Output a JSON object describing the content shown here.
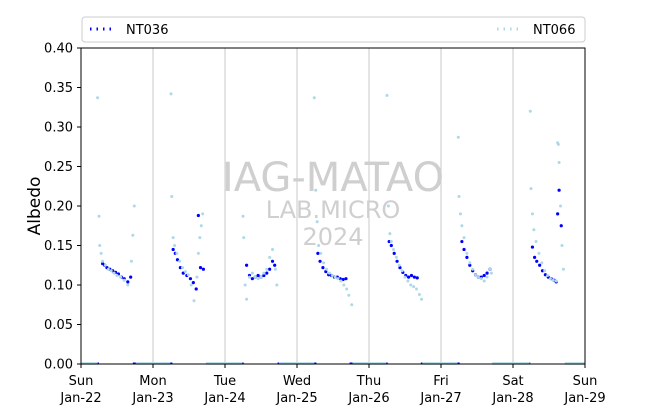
{
  "chart_data": {
    "type": "scatter",
    "title": "",
    "xlabel": "",
    "ylabel": "Albedo",
    "ylim": [
      0,
      0.4
    ],
    "xlim": [
      0,
      7
    ],
    "x_unit": "days from Sun Jan-22 00:00",
    "yticks": [
      "0.00",
      "0.05",
      "0.10",
      "0.15",
      "0.20",
      "0.25",
      "0.30",
      "0.35",
      "0.40"
    ],
    "xticks": [
      {
        "day": "Sun",
        "date": "Jan-22"
      },
      {
        "day": "Mon",
        "date": "Jan-23"
      },
      {
        "day": "Tue",
        "date": "Jan-24"
      },
      {
        "day": "Wed",
        "date": "Jan-25"
      },
      {
        "day": "Thu",
        "date": "Jan-26"
      },
      {
        "day": "Fri",
        "date": "Jan-27"
      },
      {
        "day": "Sat",
        "date": "Jan-28"
      },
      {
        "day": "Sun",
        "date": "Jan-29"
      }
    ],
    "vertical_gridlines": true,
    "legend_position": "top",
    "watermark": [
      "IAG-MATAO",
      "LAB.MICRO",
      "2024"
    ],
    "series": [
      {
        "name": "NT036",
        "color": "#0000ff",
        "style": "dotted",
        "days": [
          {
            "offset": 0,
            "x": [
              0.3,
              0.33,
              0.36,
              0.4,
              0.44,
              0.48,
              0.52,
              0.56,
              0.6,
              0.65,
              0.69
            ],
            "y": [
              0.127,
              0.125,
              0.122,
              0.12,
              0.118,
              0.116,
              0.114,
              0.11,
              0.108,
              0.104,
              0.11
            ],
            "night": [
              0.0,
              0.25,
              0.72,
              1.0
            ]
          },
          {
            "offset": 1,
            "x": [
              0.28,
              0.31,
              0.34,
              0.38,
              0.42,
              0.47,
              0.52,
              0.56,
              0.6,
              0.63,
              0.66,
              0.7
            ],
            "y": [
              0.145,
              0.14,
              0.132,
              0.122,
              0.115,
              0.112,
              0.108,
              0.103,
              0.095,
              0.188,
              0.122,
              0.12
            ],
            "night": [
              0.0,
              0.27,
              0.74,
              1.0
            ]
          },
          {
            "offset": 2,
            "x": [
              0.3,
              0.34,
              0.38,
              0.42,
              0.46,
              0.5,
              0.54,
              0.58,
              0.62,
              0.66,
              0.69
            ],
            "y": [
              0.125,
              0.112,
              0.108,
              0.11,
              0.112,
              0.11,
              0.112,
              0.115,
              0.12,
              0.13,
              0.125
            ],
            "night": [
              0.0,
              0.26,
              0.73,
              1.0
            ]
          },
          {
            "offset": 3,
            "x": [
              0.29,
              0.32,
              0.36,
              0.4,
              0.44,
              0.48,
              0.52,
              0.56,
              0.6,
              0.64,
              0.68
            ],
            "y": [
              0.14,
              0.13,
              0.122,
              0.117,
              0.113,
              0.112,
              0.11,
              0.11,
              0.108,
              0.107,
              0.108
            ],
            "night": [
              0.0,
              0.27,
              0.73,
              1.0
            ]
          },
          {
            "offset": 4,
            "x": [
              0.28,
              0.31,
              0.35,
              0.39,
              0.43,
              0.47,
              0.51,
              0.55,
              0.59,
              0.63,
              0.67
            ],
            "y": [
              0.155,
              0.15,
              0.14,
              0.13,
              0.122,
              0.116,
              0.112,
              0.11,
              0.112,
              0.11,
              0.109
            ],
            "night": [
              0.0,
              0.26,
              0.72,
              1.0
            ]
          },
          {
            "offset": 5,
            "x": [
              0.29,
              0.32,
              0.36,
              0.4,
              0.44,
              0.48,
              0.52,
              0.56,
              0.6,
              0.64,
              0.68
            ],
            "y": [
              0.155,
              0.145,
              0.135,
              0.125,
              0.118,
              0.113,
              0.11,
              0.11,
              0.112,
              0.115,
              0.12
            ],
            "night": [
              0.0,
              0.26,
              0.72,
              1.0
            ]
          },
          {
            "offset": 6,
            "x": [
              0.27,
              0.3,
              0.33,
              0.37,
              0.41,
              0.45,
              0.49,
              0.53,
              0.57,
              0.6,
              0.62,
              0.64,
              0.67
            ],
            "y": [
              0.148,
              0.135,
              0.13,
              0.125,
              0.118,
              0.113,
              0.11,
              0.108,
              0.106,
              0.104,
              0.19,
              0.22,
              0.175
            ],
            "night": [
              0.0,
              0.24,
              0.74,
              1.0
            ]
          }
        ]
      },
      {
        "name": "NT066",
        "color": "#add8e6",
        "style": "dotted",
        "days": [
          {
            "offset": 0,
            "x": [
              0.23,
              0.25,
              0.26,
              0.28,
              0.3,
              0.34,
              0.38,
              0.42,
              0.46,
              0.5,
              0.55,
              0.6,
              0.65,
              0.7,
              0.72,
              0.74
            ],
            "y": [
              0.337,
              0.187,
              0.15,
              0.14,
              0.13,
              0.125,
              0.12,
              0.118,
              0.115,
              0.112,
              0.11,
              0.106,
              0.1,
              0.13,
              0.163,
              0.2
            ],
            "night": [
              0.0,
              0.23,
              0.76,
              1.0
            ]
          },
          {
            "offset": 1,
            "x": [
              0.25,
              0.26,
              0.28,
              0.3,
              0.33,
              0.37,
              0.41,
              0.45,
              0.49,
              0.53,
              0.57,
              0.61,
              0.63,
              0.65,
              0.67,
              0.69
            ],
            "y": [
              0.342,
              0.212,
              0.16,
              0.15,
              0.14,
              0.13,
              0.122,
              0.117,
              0.113,
              0.1,
              0.08,
              0.11,
              0.14,
              0.16,
              0.175,
              0.19
            ],
            "night": [
              0.0,
              0.24,
              0.74,
              1.0
            ]
          },
          {
            "offset": 2,
            "x": [
              0.25,
              0.26,
              0.28,
              0.3,
              0.34,
              0.38,
              0.42,
              0.46,
              0.5,
              0.54,
              0.58,
              0.62,
              0.66,
              0.7,
              0.72
            ],
            "y": [
              0.187,
              0.16,
              0.1,
              0.082,
              0.11,
              0.115,
              0.11,
              0.108,
              0.11,
              0.115,
              0.12,
              0.135,
              0.145,
              0.12,
              0.1
            ],
            "night": [
              0.0,
              0.24,
              0.75,
              1.0
            ]
          },
          {
            "offset": 3,
            "x": [
              0.24,
              0.26,
              0.28,
              0.3,
              0.33,
              0.37,
              0.41,
              0.45,
              0.49,
              0.53,
              0.57,
              0.61,
              0.65,
              0.69,
              0.72,
              0.76
            ],
            "y": [
              0.337,
              0.22,
              0.18,
              0.15,
              0.14,
              0.128,
              0.12,
              0.115,
              0.112,
              0.11,
              0.108,
              0.105,
              0.1,
              0.095,
              0.087,
              0.075
            ],
            "night": [
              0.0,
              0.24,
              0.77,
              1.0
            ]
          },
          {
            "offset": 4,
            "x": [
              0.25,
              0.27,
              0.29,
              0.31,
              0.34,
              0.38,
              0.42,
              0.46,
              0.5,
              0.54,
              0.58,
              0.62,
              0.66,
              0.7,
              0.73
            ],
            "y": [
              0.34,
              0.2,
              0.165,
              0.155,
              0.145,
              0.135,
              0.125,
              0.118,
              0.11,
              0.105,
              0.1,
              0.098,
              0.095,
              0.088,
              0.082
            ],
            "night": [
              0.0,
              0.24,
              0.74,
              1.0
            ]
          },
          {
            "offset": 5,
            "x": [
              0.24,
              0.25,
              0.27,
              0.29,
              0.32,
              0.36,
              0.4,
              0.44,
              0.48,
              0.52,
              0.56,
              0.6,
              0.64,
              0.68,
              0.7
            ],
            "y": [
              0.287,
              0.212,
              0.19,
              0.175,
              0.16,
              0.14,
              0.128,
              0.12,
              0.113,
              0.11,
              0.108,
              0.105,
              0.11,
              0.12,
              0.115
            ],
            "night": [
              0.0,
              0.23,
              0.71,
              1.0
            ]
          },
          {
            "offset": 6,
            "x": [
              0.24,
              0.25,
              0.27,
              0.29,
              0.32,
              0.36,
              0.4,
              0.44,
              0.48,
              0.52,
              0.56,
              0.6,
              0.62,
              0.63,
              0.64,
              0.66,
              0.68,
              0.7
            ],
            "y": [
              0.32,
              0.222,
              0.19,
              0.17,
              0.155,
              0.14,
              0.128,
              0.118,
              0.112,
              0.108,
              0.106,
              0.105,
              0.28,
              0.278,
              0.255,
              0.2,
              0.15,
              0.12
            ],
            "night": [
              0.0,
              0.23,
              0.72,
              1.0
            ]
          }
        ]
      }
    ]
  }
}
